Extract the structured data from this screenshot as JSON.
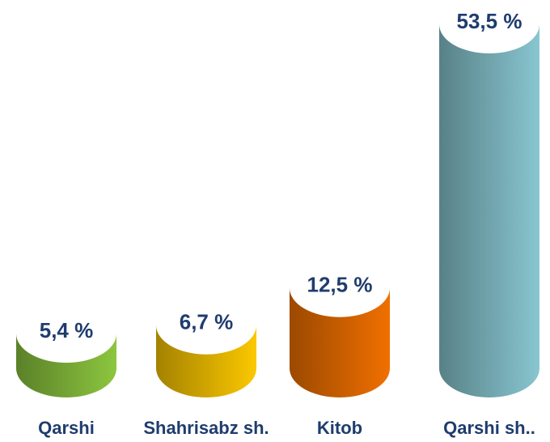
{
  "chart_data": {
    "type": "cylinder",
    "categories": [
      "Qarshi",
      "Shahrisabz sh.",
      "Kitob",
      "Qarshi sh.."
    ],
    "values": [
      5.4,
      6.7,
      12.5,
      53.5
    ],
    "value_labels": [
      "5,4 %",
      "6,7 %",
      "12,5 %",
      "53,5 %"
    ],
    "colors": [
      "#8cc63f",
      "#fcc800",
      "#f07000",
      "#88c6d0"
    ]
  }
}
